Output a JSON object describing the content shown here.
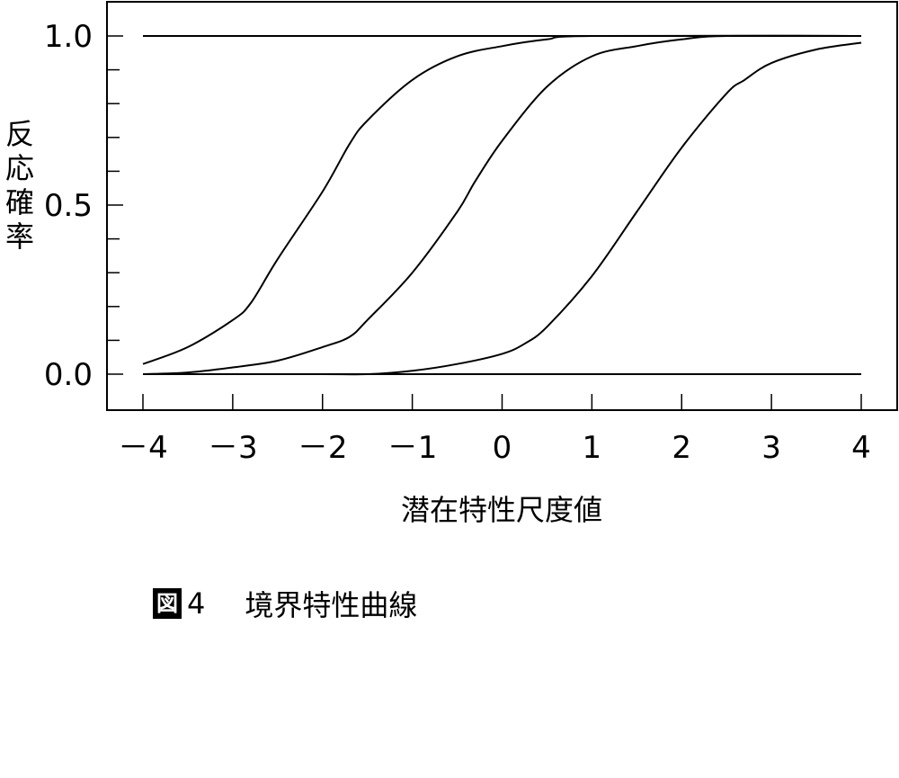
{
  "chart_data": {
    "type": "line",
    "title": "",
    "xlabel": "潜在特性尺度値",
    "ylabel": "反応確率",
    "xlim": [
      -4,
      4
    ],
    "ylim": [
      0.0,
      1.0
    ],
    "x_ticks": [
      -4,
      -3,
      -2,
      -1,
      0,
      1,
      2,
      3,
      4
    ],
    "x_tick_labels": [
      "－4",
      "－3",
      "－2",
      "－1",
      "0",
      "1",
      "2",
      "3",
      "4"
    ],
    "y_ticks": [
      0.0,
      0.5,
      1.0
    ],
    "y_tick_labels": [
      "0.0",
      "0.5",
      "1.0"
    ],
    "y_minor_step": 0.1,
    "grid": false,
    "legend": "none",
    "series": [
      {
        "x": [
          -4,
          -3.5,
          -3,
          -2.8,
          -2.5,
          -2,
          -1.7,
          -1.5,
          -1,
          -0.5,
          0,
          0.5,
          1,
          4
        ],
        "values": [
          0.03,
          0.08,
          0.16,
          0.21,
          0.34,
          0.54,
          0.68,
          0.75,
          0.87,
          0.94,
          0.97,
          0.99,
          1.0,
          1.0
        ]
      },
      {
        "x": [
          -4,
          -3.5,
          -3,
          -2.5,
          -2,
          -1.7,
          -1.5,
          -1,
          -0.5,
          -0.3,
          0,
          0.5,
          1,
          1.5,
          2,
          2.5,
          4
        ],
        "values": [
          0.0,
          0.005,
          0.02,
          0.04,
          0.08,
          0.11,
          0.16,
          0.3,
          0.48,
          0.57,
          0.69,
          0.85,
          0.94,
          0.97,
          0.99,
          1.0,
          1.0
        ]
      },
      {
        "x": [
          -4,
          -2,
          -1.5,
          -1,
          -0.5,
          0,
          0.25,
          0.5,
          1,
          1.5,
          2,
          2.5,
          2.7,
          3,
          3.5,
          4
        ],
        "values": [
          0.0,
          0.0,
          0.0,
          0.01,
          0.03,
          0.06,
          0.09,
          0.14,
          0.29,
          0.48,
          0.67,
          0.83,
          0.87,
          0.92,
          0.96,
          0.98
        ]
      }
    ]
  },
  "figure": {
    "badge": "図",
    "number": "4",
    "caption": "境界特性曲線"
  }
}
